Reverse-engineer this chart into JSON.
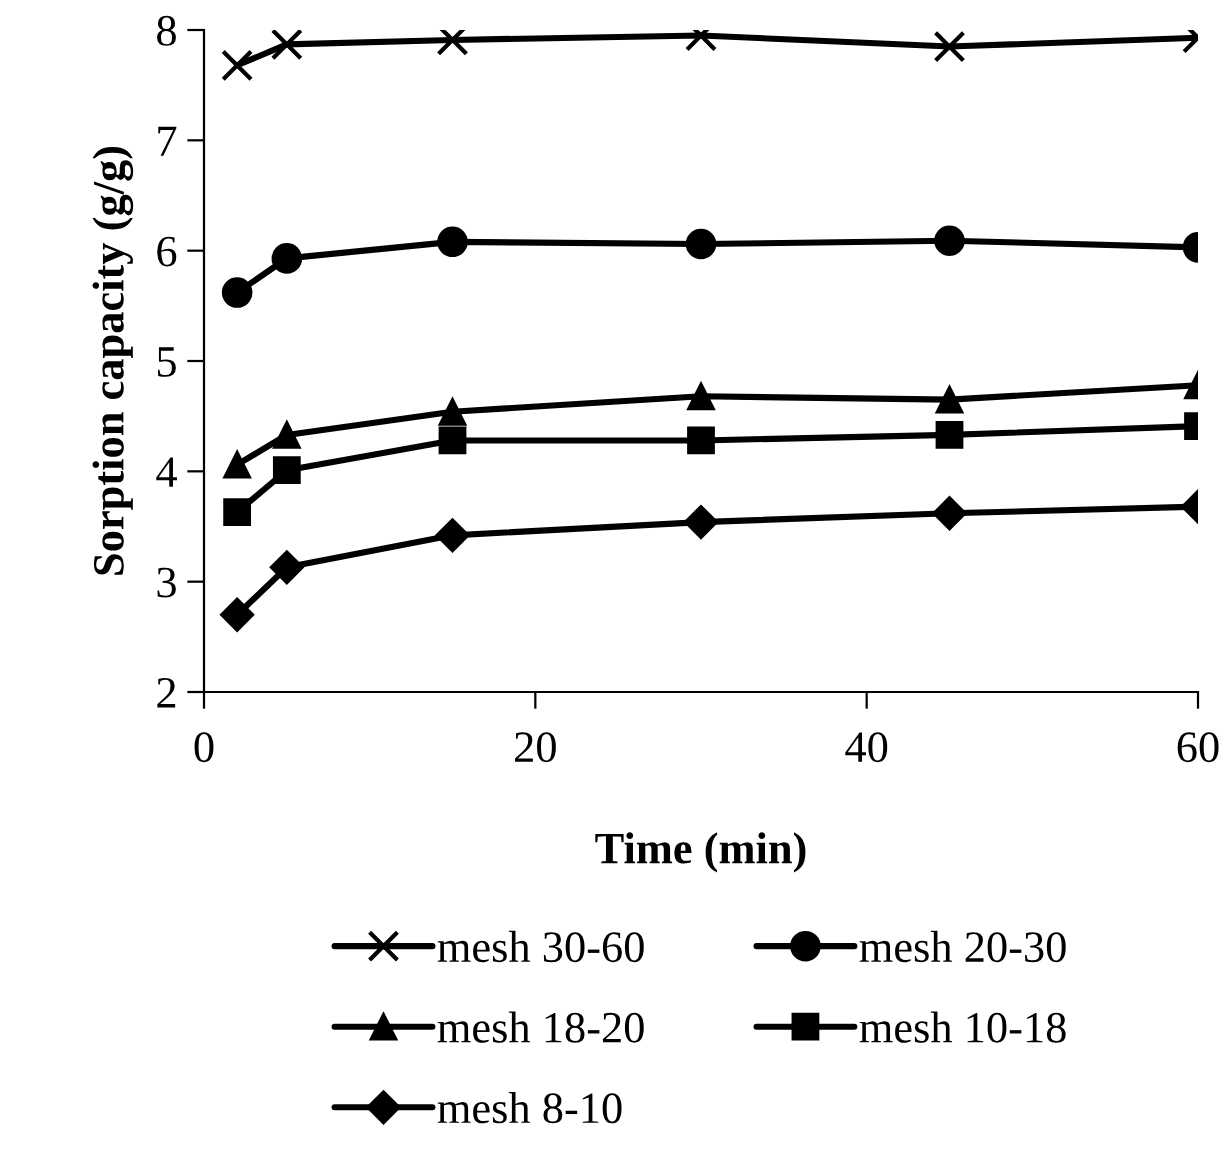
{
  "chart_data": {
    "type": "line",
    "xlabel": "Time (min)",
    "ylabel": "Sorption capacity (g/g)",
    "x": [
      2,
      5,
      15,
      30,
      45,
      60
    ],
    "series": [
      {
        "name": "mesh 30-60",
        "color": "#000000",
        "marker": "cross",
        "values": [
          7.68,
          7.87,
          7.91,
          7.95,
          7.85,
          7.93
        ]
      },
      {
        "name": "mesh 20-30",
        "color": "#000000",
        "marker": "circle",
        "values": [
          5.62,
          5.93,
          6.08,
          6.06,
          6.09,
          6.03
        ]
      },
      {
        "name": "mesh 18-20",
        "color": "#000000",
        "marker": "triangle",
        "values": [
          4.06,
          4.33,
          4.54,
          4.68,
          4.65,
          4.78
        ]
      },
      {
        "name": "mesh 10-18",
        "color": "#000000",
        "marker": "square",
        "values": [
          3.63,
          4.01,
          4.28,
          4.28,
          4.33,
          4.41
        ]
      },
      {
        "name": "mesh 8-10",
        "color": "#000000",
        "marker": "diamond",
        "values": [
          2.7,
          3.13,
          3.42,
          3.54,
          3.62,
          3.68
        ]
      }
    ],
    "xlim": [
      0,
      60
    ],
    "xticks": [
      0,
      20,
      40,
      60
    ],
    "ylim": [
      2,
      8
    ],
    "yticks": [
      2,
      3,
      4,
      5,
      6,
      7,
      8
    ],
    "grid": false,
    "legend": "bottom",
    "line_style": "solid"
  }
}
